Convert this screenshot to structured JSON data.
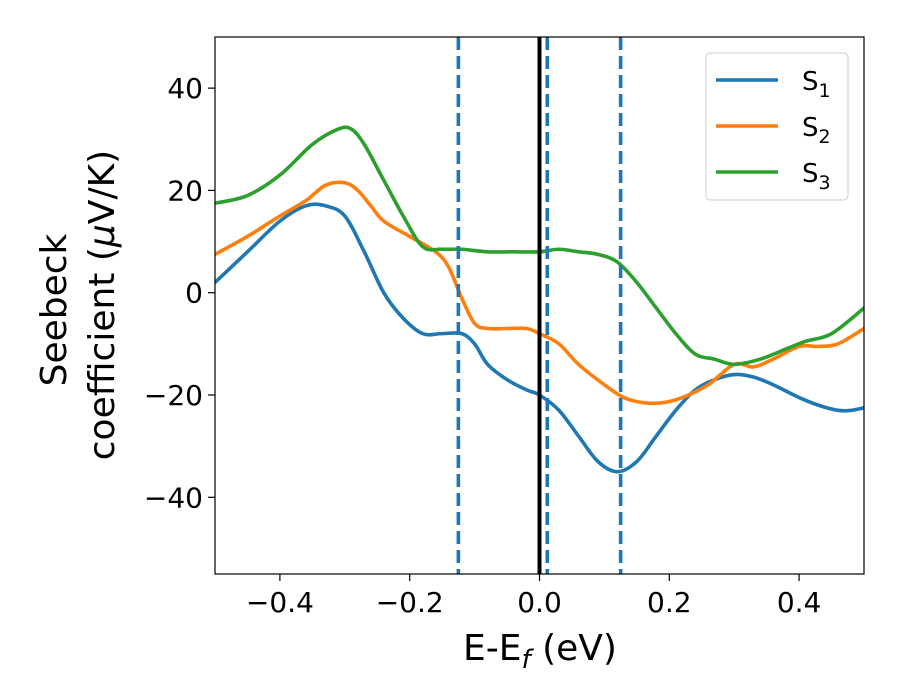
{
  "chart_data": {
    "type": "line",
    "title": "",
    "xlabel": {
      "main": "E-E",
      "sub": "f",
      "unit": " (eV)"
    },
    "ylabel": {
      "line1": "Seebeck",
      "line2_prefix": "coefficient  (",
      "mu": "μ",
      "line2_suffix": "V/K)"
    },
    "xlim": [
      -0.5,
      0.5
    ],
    "ylim": [
      -55,
      50
    ],
    "xticks": [
      -0.4,
      -0.2,
      0.0,
      0.2,
      0.4
    ],
    "xtick_labels": [
      "−0.4",
      "−0.2",
      "0.0",
      "0.2",
      "0.4"
    ],
    "yticks": [
      -40,
      -20,
      0,
      20,
      40
    ],
    "ytick_labels": [
      "−40",
      "−20",
      "0",
      "20",
      "40"
    ],
    "grid": false,
    "legend_position": "top-right",
    "vertical_lines": [
      {
        "x": -0.125,
        "style": "dashed",
        "color": "#1f77b4"
      },
      {
        "x": 0.0,
        "style": "solid",
        "color": "#000000"
      },
      {
        "x": 0.012,
        "style": "dashed",
        "color": "#1f77b4"
      },
      {
        "x": 0.125,
        "style": "dashed",
        "color": "#1f77b4"
      }
    ],
    "series": [
      {
        "name": "S",
        "sub": "1",
        "color": "#1f77b4",
        "x": [
          -0.5,
          -0.45,
          -0.4,
          -0.36,
          -0.33,
          -0.3,
          -0.27,
          -0.24,
          -0.21,
          -0.18,
          -0.15,
          -0.12,
          -0.1,
          -0.08,
          -0.05,
          -0.02,
          0.0,
          0.03,
          0.06,
          0.09,
          0.12,
          0.15,
          0.18,
          0.21,
          0.24,
          0.27,
          0.3,
          0.33,
          0.36,
          0.4,
          0.43,
          0.46,
          0.48,
          0.5
        ],
        "y": [
          2,
          8,
          14,
          17,
          17,
          15,
          8,
          0,
          -5,
          -8,
          -8,
          -8,
          -10,
          -14,
          -17,
          -19,
          -20,
          -23,
          -28,
          -33,
          -35,
          -33,
          -28,
          -23,
          -19,
          -17,
          -16,
          -16.5,
          -18,
          -20.5,
          -22,
          -23,
          -23,
          -22.5
        ]
      },
      {
        "name": "S",
        "sub": "2",
        "color": "#ff7f0e",
        "x": [
          -0.5,
          -0.45,
          -0.4,
          -0.36,
          -0.33,
          -0.3,
          -0.28,
          -0.26,
          -0.24,
          -0.2,
          -0.16,
          -0.14,
          -0.12,
          -0.1,
          -0.08,
          -0.05,
          -0.02,
          0.0,
          0.03,
          0.06,
          0.1,
          0.13,
          0.16,
          0.19,
          0.22,
          0.26,
          0.3,
          0.33,
          0.36,
          0.4,
          0.43,
          0.46,
          0.5
        ],
        "y": [
          7.5,
          11,
          15,
          18,
          21,
          21.5,
          20,
          17,
          14,
          11,
          8,
          5,
          -1,
          -6,
          -7,
          -7,
          -7,
          -8,
          -10,
          -14,
          -18,
          -20.5,
          -21.5,
          -21.5,
          -20.5,
          -18,
          -14,
          -14.5,
          -13,
          -10.5,
          -10.5,
          -10,
          -7
        ]
      },
      {
        "name": "S",
        "sub": "3",
        "color": "#2ca02c",
        "x": [
          -0.5,
          -0.45,
          -0.4,
          -0.35,
          -0.31,
          -0.29,
          -0.27,
          -0.24,
          -0.21,
          -0.18,
          -0.15,
          -0.12,
          -0.08,
          -0.04,
          0.0,
          0.03,
          0.06,
          0.09,
          0.12,
          0.15,
          0.18,
          0.21,
          0.24,
          0.27,
          0.3,
          0.34,
          0.38,
          0.41,
          0.45,
          0.5
        ],
        "y": [
          17.5,
          19,
          23,
          29,
          32,
          32,
          29,
          22,
          15,
          9,
          8.5,
          8.5,
          8,
          8,
          8,
          8.5,
          8,
          7.5,
          6,
          2,
          -3,
          -8,
          -12,
          -13,
          -14,
          -13,
          -11,
          -9.5,
          -8,
          -3
        ]
      }
    ]
  }
}
